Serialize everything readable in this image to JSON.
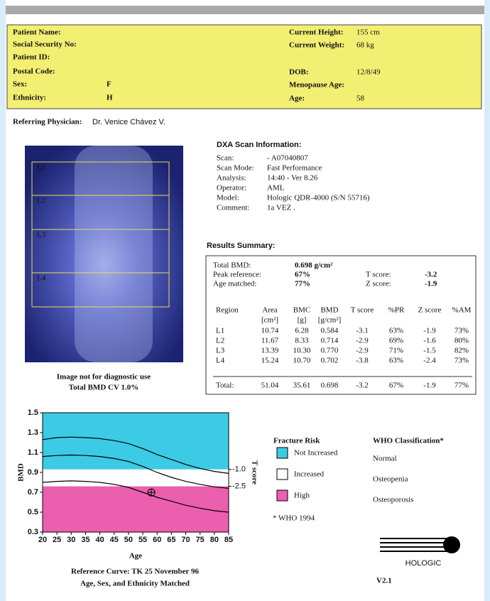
{
  "patient_info": {
    "left": [
      {
        "label": "Patient Name:"
      },
      {
        "label": "Social Security No:"
      },
      {
        "label": "Patient ID:"
      },
      {
        "label": "Postal Code:"
      },
      {
        "label": "Sex:",
        "value": "F"
      },
      {
        "label": "Ethnicity:",
        "value": "H"
      }
    ],
    "right": [
      {
        "label": "Current Height:",
        "value": "155 cm"
      },
      {
        "label": "Current Weight:",
        "value": "68 kg"
      },
      {
        "label": "DOB:",
        "value": "12/8/49"
      },
      {
        "label": "Menopause Age:"
      },
      {
        "label": "Age:",
        "value": "58"
      }
    ]
  },
  "referring_physician": {
    "label": "Referring Physician:",
    "value": "Dr. Venice Chávez V."
  },
  "scan_image": {
    "regions": [
      "L1",
      "L2",
      "L3",
      "L4"
    ],
    "captions": [
      "Image not for diagnostic use",
      "Total BMD CV 1.0%"
    ]
  },
  "scan_info": {
    "title": "DXA Scan Information:",
    "rows": [
      [
        "Scan:",
        "- A07040807"
      ],
      [
        "Scan Mode:",
        "Fast Performance"
      ],
      [
        "Analysis:",
        "14:40 - Ver 8.26"
      ],
      [
        "Operator:",
        "AML"
      ],
      [
        "Model:",
        "Hologic QDR-4000 (S/N 55716)"
      ],
      [
        "Comment:",
        "1a VEZ ."
      ]
    ]
  },
  "results": {
    "title": "Results Summary:",
    "summary": [
      [
        "Total BMD:",
        "0.698 g/cm²"
      ],
      [
        "Peak reference:",
        "67%"
      ],
      [
        "Age matched:",
        "77%"
      ]
    ],
    "scores": [
      [
        "T score:",
        "-3.2"
      ],
      [
        "Z score:",
        "-1.9"
      ]
    ],
    "columns": [
      [
        "Region"
      ],
      [
        "Area",
        "[cm²]"
      ],
      [
        "BMC",
        "[g]"
      ],
      [
        "BMD",
        "[g/cm²]"
      ],
      [
        "T score"
      ],
      [
        "%PR"
      ],
      [
        "Z score"
      ],
      [
        "%AM"
      ]
    ],
    "rows": [
      [
        "L1",
        "10.74",
        "6.28",
        "0.584",
        "-3.1",
        "63%",
        "-1.9",
        "73%"
      ],
      [
        "L2",
        "11.67",
        "8.33",
        "0.714",
        "-2.9",
        "69%",
        "-1.6",
        "80%"
      ],
      [
        "L3",
        "13.39",
        "10.30",
        "0.770",
        "-2.9",
        "71%",
        "-1.5",
        "82%"
      ],
      [
        "L4",
        "15.24",
        "10.70",
        "0.702",
        "-3.8",
        "63%",
        "-2.4",
        "73%"
      ]
    ],
    "total": [
      "Total:",
      "51.04",
      "35.61",
      "0.698",
      "-3.2",
      "67%",
      "-1.9",
      "77%"
    ]
  },
  "chart_data": {
    "type": "line",
    "xlabel": "Age",
    "ylabel": "BMD",
    "y2label": "T score",
    "x": [
      20,
      25,
      30,
      35,
      40,
      45,
      50,
      55,
      60,
      65,
      70,
      75,
      80,
      85
    ],
    "series": [
      {
        "color": "#000000",
        "values": [
          1.23,
          1.25,
          1.255,
          1.25,
          1.24,
          1.22,
          1.19,
          1.14,
          1.08,
          1.03,
          0.98,
          0.94,
          0.91,
          0.89
        ]
      },
      {
        "color": "#000000",
        "values": [
          1.06,
          1.07,
          1.075,
          1.07,
          1.06,
          1.04,
          1.01,
          0.96,
          0.9,
          0.85,
          0.81,
          0.78,
          0.755,
          0.74
        ]
      },
      {
        "color": "#000000",
        "values": [
          0.8,
          0.81,
          0.815,
          0.81,
          0.8,
          0.78,
          0.75,
          0.7,
          0.65,
          0.61,
          0.57,
          0.54,
          0.515,
          0.5
        ]
      }
    ],
    "point": {
      "x": 58,
      "y": 0.698
    },
    "xlim": [
      20,
      85
    ],
    "xticks": [
      20,
      25,
      30,
      35,
      40,
      45,
      50,
      55,
      60,
      65,
      70,
      75,
      80,
      85
    ],
    "ylim": [
      0.3,
      1.5
    ],
    "yticks": [
      0.3,
      0.5,
      0.7,
      0.9,
      1.1,
      1.3,
      1.5
    ],
    "y2lim": [
      -6.56,
      4.03
    ],
    "y2ticks": [
      {
        "value": -1,
        "label": "-1.0"
      },
      {
        "value": -2.5,
        "label": "-2.5"
      }
    ]
  },
  "legend": {
    "fracture_title": "Fracture Risk",
    "fracture_items": [
      {
        "label": "Not Increased",
        "color": "#3ccbe4"
      },
      {
        "label": "Increased",
        "color": "#ffffff"
      },
      {
        "label": "High",
        "color": "#ea5fae"
      }
    ],
    "who_title": "WHO Classification*",
    "who_items": [
      "Normal",
      "Osteopenia",
      "Osteoporosis"
    ],
    "footnote": "* WHO 1994"
  },
  "chart_footer": [
    "Reference Curve: TK 25 November 96",
    "Age, Sex, and Ethnicity Matched"
  ],
  "logo": {
    "name": "HOLOGIC",
    "version": "V2.1"
  }
}
